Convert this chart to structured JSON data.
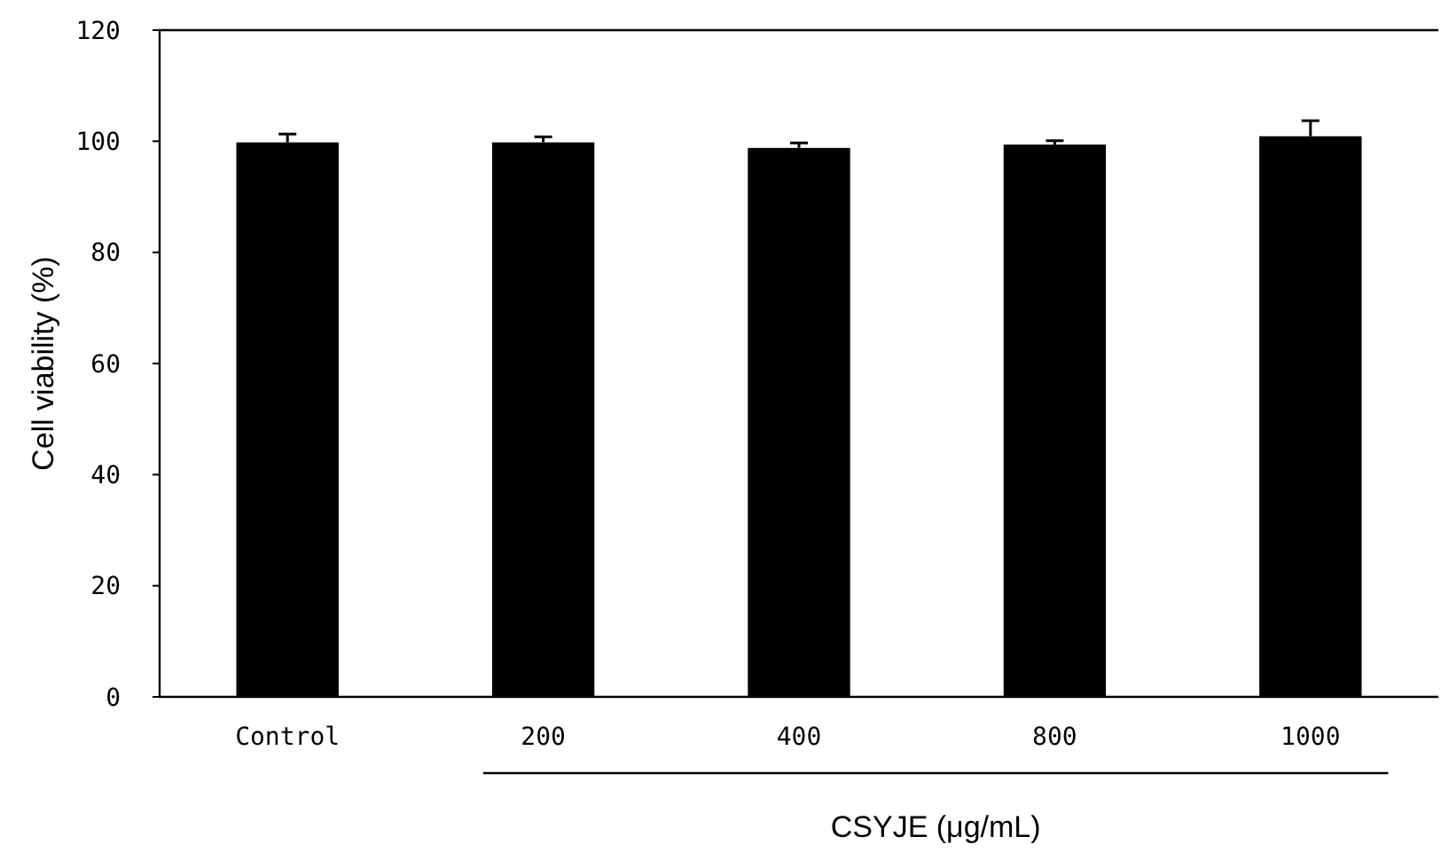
{
  "chart_data": {
    "type": "bar",
    "ylabel": "Cell viability (%)",
    "xlabel": "CSYJE (μg/mL)",
    "categories": [
      "Control",
      "200",
      "400",
      "800",
      "1000"
    ],
    "values": [
      99.8,
      99.8,
      98.8,
      99.4,
      100.9
    ],
    "errors": [
      1.5,
      1,
      0.9,
      0.7,
      2.8
    ],
    "color": "#000000",
    "ylim": [
      0,
      120
    ],
    "yticks": [
      0,
      20,
      40,
      60,
      80,
      100,
      120
    ],
    "grid": false
  }
}
